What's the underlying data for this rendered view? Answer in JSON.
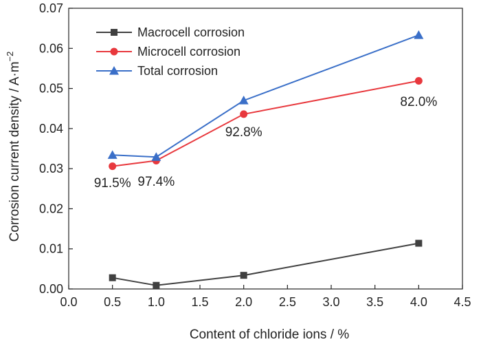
{
  "chart_data": {
    "type": "line",
    "title": "",
    "xlabel": "Content of chloride ions / %",
    "ylabel": "Corrosion current density / A·m",
    "ylabel_superscript": "−2",
    "xlim": [
      0.0,
      4.5
    ],
    "ylim": [
      0.0,
      0.07
    ],
    "xticks": [
      "0.0",
      "0.5",
      "1.0",
      "1.5",
      "2.0",
      "2.5",
      "3.0",
      "3.5",
      "4.0",
      "4.5"
    ],
    "yticks": [
      "0.00",
      "0.01",
      "0.02",
      "0.03",
      "0.04",
      "0.05",
      "0.06",
      "0.07"
    ],
    "grid": false,
    "legend_position": "top-left",
    "series": [
      {
        "name": "Macrocell corrosion",
        "color": "#404040",
        "marker": "square",
        "x": [
          0.5,
          1.0,
          2.0,
          4.0
        ],
        "y": [
          0.0028,
          0.0009,
          0.0034,
          0.0114
        ]
      },
      {
        "name": "Microcell corrosion",
        "color": "#e8383d",
        "marker": "circle",
        "x": [
          0.5,
          1.0,
          2.0,
          4.0
        ],
        "y": [
          0.0306,
          0.032,
          0.0436,
          0.0519
        ]
      },
      {
        "name": "Total corrosion",
        "color": "#3a6fc8",
        "marker": "triangle",
        "x": [
          0.5,
          1.0,
          2.0,
          4.0
        ],
        "y": [
          0.0334,
          0.0329,
          0.047,
          0.0633
        ]
      }
    ],
    "annotations": [
      {
        "text": "91.5%",
        "x": 0.5,
        "y": 0.0266
      },
      {
        "text": "97.4%",
        "x": 1.0,
        "y": 0.0269
      },
      {
        "text": "92.8%",
        "x": 2.0,
        "y": 0.0393
      },
      {
        "text": "82.0%",
        "x": 4.0,
        "y": 0.0468
      }
    ]
  }
}
